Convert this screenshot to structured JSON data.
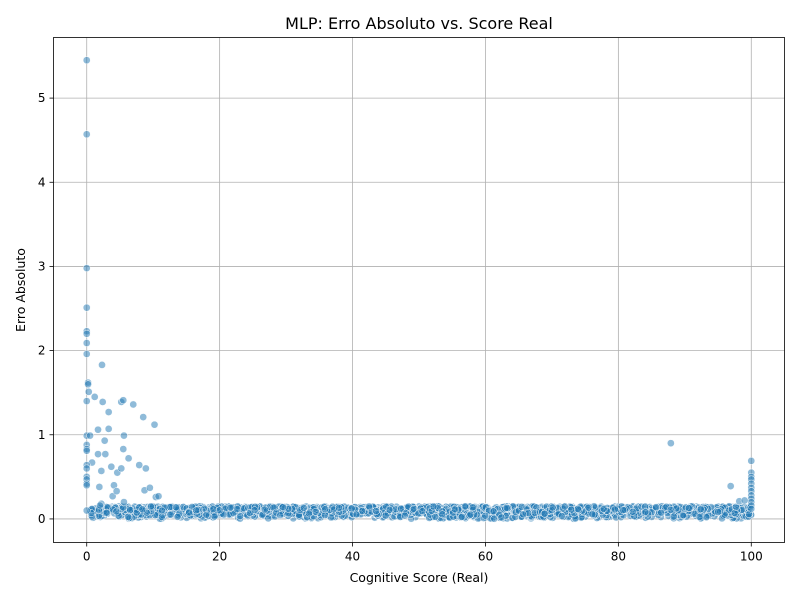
{
  "chart_data": {
    "type": "scatter",
    "title": "MLP: Erro Absoluto vs. Score Real",
    "xlabel": "Cognitive Score (Real)",
    "ylabel": "Erro Absoluto",
    "xlim": [
      -5,
      105
    ],
    "ylim": [
      -0.28,
      5.72
    ],
    "xticks": [
      0,
      20,
      40,
      60,
      80,
      100
    ],
    "yticks": [
      0,
      1,
      2,
      3,
      4,
      5
    ],
    "grid": true,
    "legend": "none",
    "marker_color": "#1f77b4",
    "marker_alpha": 0.5,
    "series": [
      {
        "outliers": [
          [
            0,
            5.45
          ],
          [
            0,
            4.57
          ],
          [
            0,
            2.98
          ],
          [
            0,
            2.51
          ],
          [
            0,
            2.23
          ],
          [
            0,
            2.2
          ],
          [
            0,
            2.09
          ],
          [
            0,
            1.96
          ],
          [
            0.2,
            1.62
          ],
          [
            0.2,
            1.6
          ],
          [
            0.3,
            1.51
          ],
          [
            0,
            1.4
          ],
          [
            0,
            0.99
          ],
          [
            0.5,
            0.99
          ],
          [
            0,
            0.88
          ],
          [
            0,
            0.83
          ],
          [
            0,
            0.81
          ],
          [
            0.8,
            0.67
          ],
          [
            0,
            0.64
          ],
          [
            0,
            0.6
          ],
          [
            0,
            0.5
          ],
          [
            0,
            0.47
          ],
          [
            0,
            0.42
          ],
          [
            0,
            0.4
          ],
          [
            0,
            0.1
          ],
          [
            1.2,
            1.45
          ],
          [
            1.7,
            1.06
          ],
          [
            1.7,
            0.77
          ],
          [
            1.9,
            0.38
          ],
          [
            2.2,
            0.57
          ],
          [
            2.2,
            0.18
          ],
          [
            2.0,
            0.16
          ],
          [
            2.3,
            1.83
          ],
          [
            2.4,
            1.39
          ],
          [
            2.7,
            0.93
          ],
          [
            2.8,
            0.77
          ],
          [
            3.3,
            1.27
          ],
          [
            3.3,
            1.07
          ],
          [
            3.7,
            0.62
          ],
          [
            3.9,
            0.27
          ],
          [
            4.1,
            0.4
          ],
          [
            4.5,
            0.33
          ],
          [
            4.6,
            0.55
          ],
          [
            5.2,
            1.39
          ],
          [
            5.2,
            0.6
          ],
          [
            5.5,
            1.41
          ],
          [
            5.6,
            0.99
          ],
          [
            5.5,
            0.83
          ],
          [
            5.6,
            0.2
          ],
          [
            6.3,
            0.72
          ],
          [
            7.0,
            1.36
          ],
          [
            7.9,
            0.64
          ],
          [
            8.5,
            1.21
          ],
          [
            8.7,
            0.34
          ],
          [
            8.9,
            0.6
          ],
          [
            9.5,
            0.37
          ],
          [
            10.2,
            1.12
          ],
          [
            10.4,
            0.26
          ],
          [
            10.8,
            0.27
          ],
          [
            87.9,
            0.9
          ],
          [
            96.9,
            0.39
          ],
          [
            100,
            0.69
          ],
          [
            100,
            0.55
          ],
          [
            100,
            0.5
          ],
          [
            100,
            0.47
          ],
          [
            100,
            0.42
          ],
          [
            100,
            0.37
          ],
          [
            100,
            0.33
          ],
          [
            100,
            0.28
          ],
          [
            100,
            0.24
          ],
          [
            100,
            0.2
          ],
          [
            100,
            0.16
          ],
          [
            100,
            0.12
          ],
          [
            98.2,
            0.21
          ],
          [
            99.0,
            0.22
          ]
        ],
        "bulk": {
          "x_range": [
            0.5,
            100
          ],
          "y_range": [
            0,
            0.15
          ],
          "count": 1900
        }
      }
    ]
  }
}
